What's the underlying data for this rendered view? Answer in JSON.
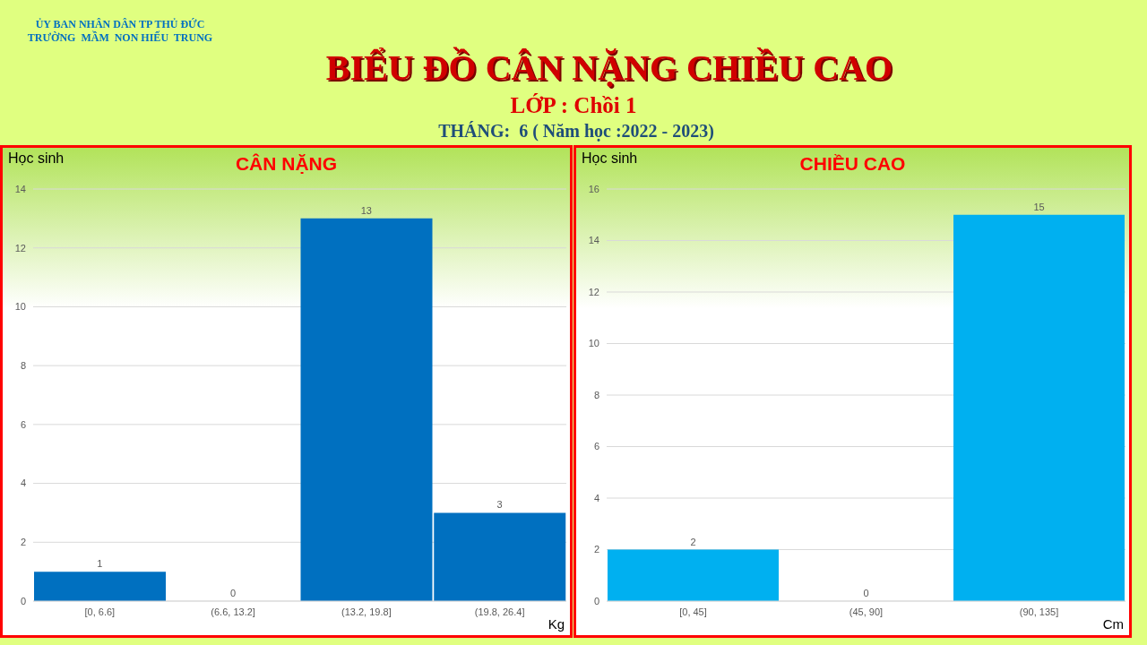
{
  "chart_data": [
    {
      "type": "other",
      "title": "BIỂU ĐỒ CÂN NẶNG CHIỀU CAO",
      "annotations": [
        "ỦY BAN NHÂN DÂN TP THỦ ĐỨC",
        "TRƯỜNG  MẦM  NON HIẾU  TRUNG",
        "LỚP : Chồi 1",
        "THÁNG:  6 ( Năm học :2022 - 2023)"
      ]
    },
    {
      "type": "bar",
      "title": "CÂN NẶNG",
      "ylabel": "Học sinh",
      "xlabel": "Kg",
      "categories": [
        "[0, 6.6]",
        "(6.6, 13.2]",
        "(13.2, 19.8]",
        "(19.8, 26.4]"
      ],
      "values": [
        1,
        0,
        13,
        3
      ],
      "color": "#0070c0",
      "ylim": [
        0,
        14
      ],
      "yticks": [
        0,
        2,
        4,
        6,
        8,
        10,
        12,
        14
      ],
      "grid": "y",
      "data_labels": true
    },
    {
      "type": "bar",
      "title": "CHIỀU CAO",
      "ylabel": "Học sinh",
      "xlabel": "Cm",
      "categories": [
        "[0, 45]",
        "(45, 90]",
        "(90, 135]"
      ],
      "values": [
        2,
        0,
        15
      ],
      "color": "#00b0f0",
      "ylim": [
        0,
        16
      ],
      "yticks": [
        0,
        2,
        4,
        6,
        8,
        10,
        12,
        14,
        16
      ],
      "grid": "y",
      "data_labels": true
    }
  ]
}
